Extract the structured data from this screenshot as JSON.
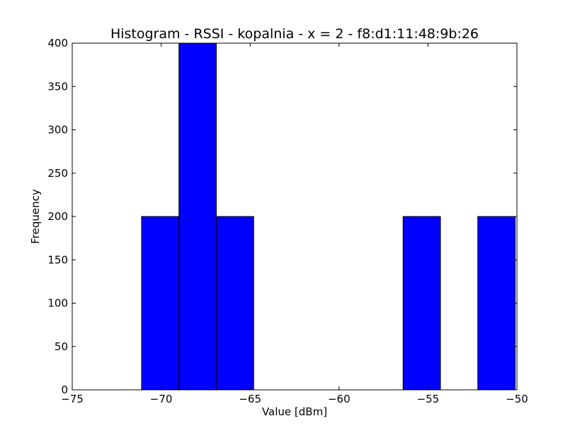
{
  "chart_data": {
    "type": "bar",
    "title": "Histogram - RSSI - kopalnia - x = 2 - f8:d1:11:48:9b:26",
    "xlabel": "Value [dBm]",
    "ylabel": "Frequency",
    "xlim": [
      -75,
      -50
    ],
    "ylim": [
      0,
      400
    ],
    "x_ticks": [
      -75,
      -70,
      -65,
      -60,
      -55,
      -50
    ],
    "x_tick_labels": [
      "−75",
      "−70",
      "−65",
      "−60",
      "−55",
      "−50"
    ],
    "y_ticks": [
      0,
      50,
      100,
      150,
      200,
      250,
      300,
      350,
      400
    ],
    "y_tick_labels": [
      "0",
      "50",
      "100",
      "150",
      "200",
      "250",
      "300",
      "350",
      "400"
    ],
    "bins": [
      {
        "start": -71.1,
        "end": -69.0,
        "value": 200
      },
      {
        "start": -69.0,
        "end": -66.9,
        "value": 400
      },
      {
        "start": -66.9,
        "end": -64.8,
        "value": 200
      },
      {
        "start": -64.8,
        "end": -62.7,
        "value": 0
      },
      {
        "start": -62.7,
        "end": -60.6,
        "value": 0
      },
      {
        "start": -60.6,
        "end": -58.5,
        "value": 0
      },
      {
        "start": -58.5,
        "end": -56.4,
        "value": 0
      },
      {
        "start": -56.4,
        "end": -54.3,
        "value": 200
      },
      {
        "start": -54.3,
        "end": -52.2,
        "value": 0
      },
      {
        "start": -52.2,
        "end": -50.1,
        "value": 200
      }
    ],
    "bar_color": "#0000ff",
    "edge_color": "#000000",
    "grid": false,
    "legend": "none"
  }
}
